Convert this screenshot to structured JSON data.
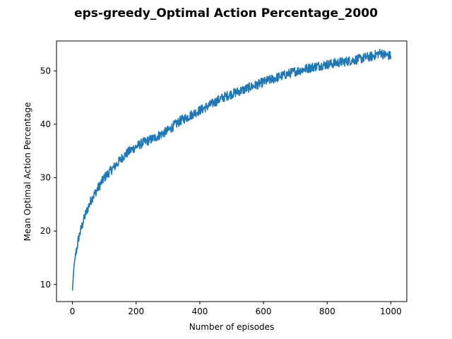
{
  "chart_data": {
    "type": "line",
    "title": "eps-greedy_Optimal Action Percentage_2000",
    "xlabel": "Number of episodes",
    "ylabel": "Mean Optimal Action Percentage",
    "xlim": [
      -50,
      1050
    ],
    "ylim": [
      6.8,
      55.6
    ],
    "xticks": [
      0,
      200,
      400,
      600,
      800,
      1000
    ],
    "yticks": [
      10,
      20,
      30,
      40,
      50
    ],
    "grid": false,
    "legend": "none",
    "series": [
      {
        "color": "#1f77b4",
        "x": [
          0,
          5,
          10,
          20,
          30,
          40,
          50,
          60,
          70,
          80,
          90,
          100,
          120,
          140,
          160,
          180,
          200,
          220,
          240,
          260,
          280,
          300,
          320,
          340,
          360,
          380,
          400,
          420,
          440,
          460,
          480,
          500,
          520,
          540,
          560,
          580,
          600,
          620,
          640,
          660,
          680,
          700,
          720,
          740,
          760,
          780,
          800,
          820,
          840,
          860,
          880,
          900,
          920,
          940,
          960,
          970,
          980,
          1000
        ],
        "y": [
          8.8,
          13.5,
          15.5,
          18.8,
          21.0,
          23.0,
          24.5,
          26.0,
          27.0,
          28.0,
          29.0,
          30.0,
          31.3,
          32.6,
          34.0,
          35.0,
          35.8,
          36.5,
          37.0,
          37.5,
          38.2,
          38.8,
          39.8,
          40.7,
          41.3,
          42.0,
          42.6,
          43.2,
          43.9,
          44.6,
          45.2,
          45.7,
          46.1,
          46.5,
          47.0,
          47.4,
          47.9,
          48.3,
          48.7,
          49.1,
          49.5,
          49.9,
          50.2,
          50.5,
          50.8,
          51.0,
          51.2,
          51.4,
          51.6,
          51.8,
          52.0,
          52.2,
          52.5,
          52.7,
          53.2,
          53.4,
          53.0,
          52.8
        ]
      }
    ]
  }
}
